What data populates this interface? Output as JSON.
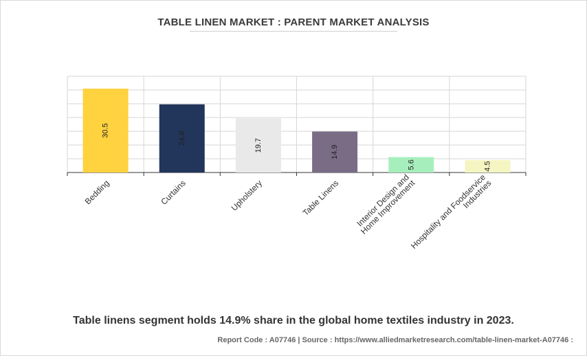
{
  "chart_data": {
    "type": "bar",
    "title": "TABLE LINEN MARKET : PARENT MARKET ANALYSIS",
    "categories": [
      "Bedding",
      "Curtains",
      "Upholstery",
      "Table Linens",
      "Interior Design and Home Improvement",
      "Hospitality and Foodservice Industries"
    ],
    "category_lines": [
      [
        "Bedding"
      ],
      [
        "Curtains"
      ],
      [
        "Upholstery"
      ],
      [
        "Table Linens"
      ],
      [
        "Interior Design and",
        "Home Improvement"
      ],
      [
        "Hospitality and Foodservice",
        "Industries"
      ]
    ],
    "values": [
      30.5,
      24.8,
      19.7,
      14.9,
      5.6,
      4.5
    ],
    "value_labels": [
      "30.5",
      "24.8",
      "19.7",
      "14.9",
      "5.6",
      "4.5"
    ],
    "colors": [
      "#ffd23f",
      "#22355a",
      "#e9e9e9",
      "#7b6c86",
      "#a6efbd",
      "#f5f5c2"
    ],
    "label_colors": [
      "#222222",
      "#222222",
      "#222222",
      "#222222",
      "#222222",
      "#222222"
    ],
    "ylim": [
      0,
      35
    ],
    "grid": true,
    "xlabel": "",
    "ylabel": ""
  },
  "caption": "Table linens segment holds 14.9% share in the global home textiles industry in 2023.",
  "footer": "Report Code : A07746  |  Source : https://www.alliedmarketresearch.com/table-linen-market-A07746 :"
}
